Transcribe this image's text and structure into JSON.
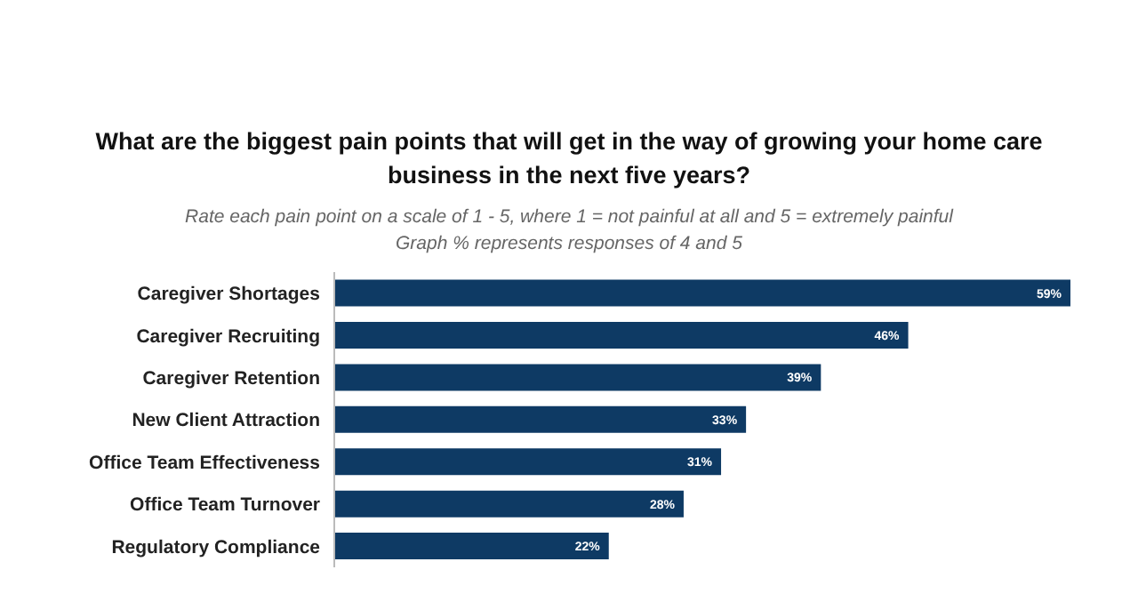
{
  "chart_data": {
    "type": "bar",
    "orientation": "horizontal",
    "title": "What are the biggest pain points that will get in the way of growing your home care business in the next five years?",
    "subtitle": "Rate each pain point on a scale of 1 - 5, where 1 = not painful at all and 5 = extremely painful",
    "annotations": [
      "Graph % represents responses of 4 and 5"
    ],
    "categories": [
      "Caregiver Shortages",
      "Caregiver Recruiting",
      "Caregiver Retention",
      "New Client Attraction",
      "Office Team Effectiveness",
      "Office Team Turnover",
      "Regulatory Compliance"
    ],
    "values": [
      59,
      46,
      39,
      33,
      31,
      28,
      22
    ],
    "value_labels": [
      "59%",
      "46%",
      "39%",
      "33%",
      "31%",
      "28%",
      "22%"
    ],
    "color": "#0e3a64"
  }
}
